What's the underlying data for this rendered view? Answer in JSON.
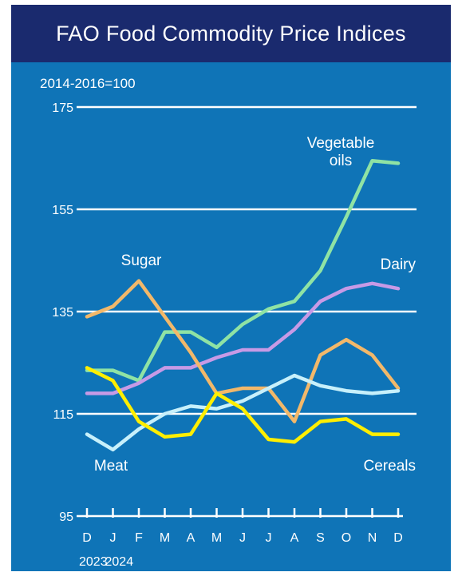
{
  "chart_data": {
    "type": "line",
    "title": "FAO Food Commodity Price Indices",
    "base_note": "2014-2016=100",
    "ylim": [
      95,
      175
    ],
    "yticks": [
      95,
      115,
      135,
      155,
      175
    ],
    "grid": true,
    "categories": [
      "D",
      "J",
      "F",
      "M",
      "A",
      "M",
      "J",
      "J",
      "A",
      "S",
      "O",
      "N",
      "D"
    ],
    "year_labels": [
      {
        "label": "2023",
        "index": 0
      },
      {
        "label": "2024",
        "index": 1
      }
    ],
    "series": [
      {
        "name": "Vegetable oils",
        "label_lines": [
          "Vegetable",
          "oils"
        ],
        "color": "#8fe3a4",
        "values": [
          123.5,
          123.5,
          121.5,
          131,
          131,
          128,
          132.5,
          135.5,
          137,
          143,
          153.5,
          164.5,
          164
        ]
      },
      {
        "name": "Dairy",
        "label_lines": [
          "Dairy"
        ],
        "color": "#c79ae6",
        "values": [
          119,
          119,
          121,
          124,
          124,
          126,
          127.5,
          127.5,
          131.5,
          137,
          139.5,
          140.5,
          139.5
        ]
      },
      {
        "name": "Sugar",
        "label_lines": [
          "Sugar"
        ],
        "color": "#f2b86a",
        "values": [
          134,
          136,
          141,
          134,
          127,
          119,
          120,
          120,
          113.5,
          126.5,
          129.5,
          126.5,
          120
        ]
      },
      {
        "name": "Meat",
        "label_lines": [
          "Meat"
        ],
        "color": "#c7f0fb",
        "values": [
          111,
          108,
          112,
          115,
          116.5,
          116,
          117.5,
          120,
          122.5,
          120.5,
          119.5,
          119,
          119.5
        ]
      },
      {
        "name": "Cereals",
        "label_lines": [
          "Cereals"
        ],
        "color": "#ffee00",
        "values": [
          124,
          121.5,
          113.5,
          110.5,
          111,
          119,
          116,
          110,
          109.5,
          113.5,
          114,
          111,
          111
        ]
      }
    ]
  }
}
